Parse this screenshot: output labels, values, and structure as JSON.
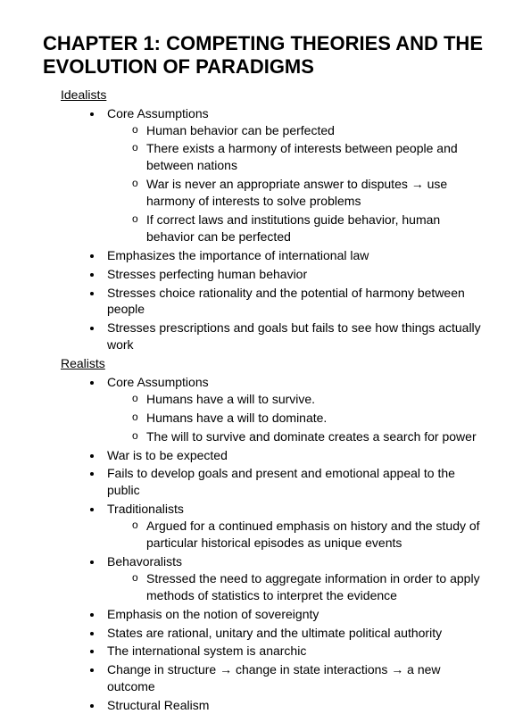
{
  "title": "CHAPTER 1: COMPETING THEORIES AND THE EVOLUTION OF PARADIGMS",
  "colors": {
    "text": "#000000",
    "background": "#ffffff"
  },
  "typography": {
    "font_family": "Arial",
    "title_fontsize": 22,
    "body_fontsize": 14,
    "heading_fontsize": 14
  },
  "sections": [
    {
      "heading": "Idealists",
      "items": [
        {
          "text": "Core Assumptions",
          "sub": [
            "Human behavior can be perfected",
            "There exists a harmony of interests between people and between nations",
            "War is never an appropriate answer to disputes → use harmony of interests to solve problems",
            "If correct laws and institutions guide behavior, human behavior can be perfected"
          ]
        },
        {
          "text": "Emphasizes the importance of international law"
        },
        {
          "text": "Stresses perfecting human behavior"
        },
        {
          "text": "Stresses choice rationality and the potential of harmony between people"
        },
        {
          "text": "Stresses prescriptions and goals but fails to see how things actually work"
        }
      ]
    },
    {
      "heading": "Realists",
      "items": [
        {
          "text": "Core Assumptions",
          "sub": [
            "Humans have a will to survive.",
            "Humans have a will to dominate.",
            "The will to survive and dominate creates a search for power"
          ]
        },
        {
          "text": "War is to be expected"
        },
        {
          "text": "Fails to develop goals and present and emotional appeal to the public"
        },
        {
          "text": "Traditionalists",
          "sub": [
            "Argued for a continued emphasis on history and the study of particular historical episodes as unique events"
          ]
        },
        {
          "text": "Behavoralists",
          "sub": [
            "Stressed the need to aggregate information in order to apply methods of statistics to interpret the evidence"
          ]
        },
        {
          "text": "Emphasis on the notion of sovereignty"
        },
        {
          "text": "States are rational, unitary and the ultimate political authority"
        },
        {
          "text": "The international system is anarchic"
        },
        {
          "text": "Change in structure → change in state interactions → a new outcome"
        },
        {
          "text": "Structural Realism"
        }
      ]
    }
  ]
}
